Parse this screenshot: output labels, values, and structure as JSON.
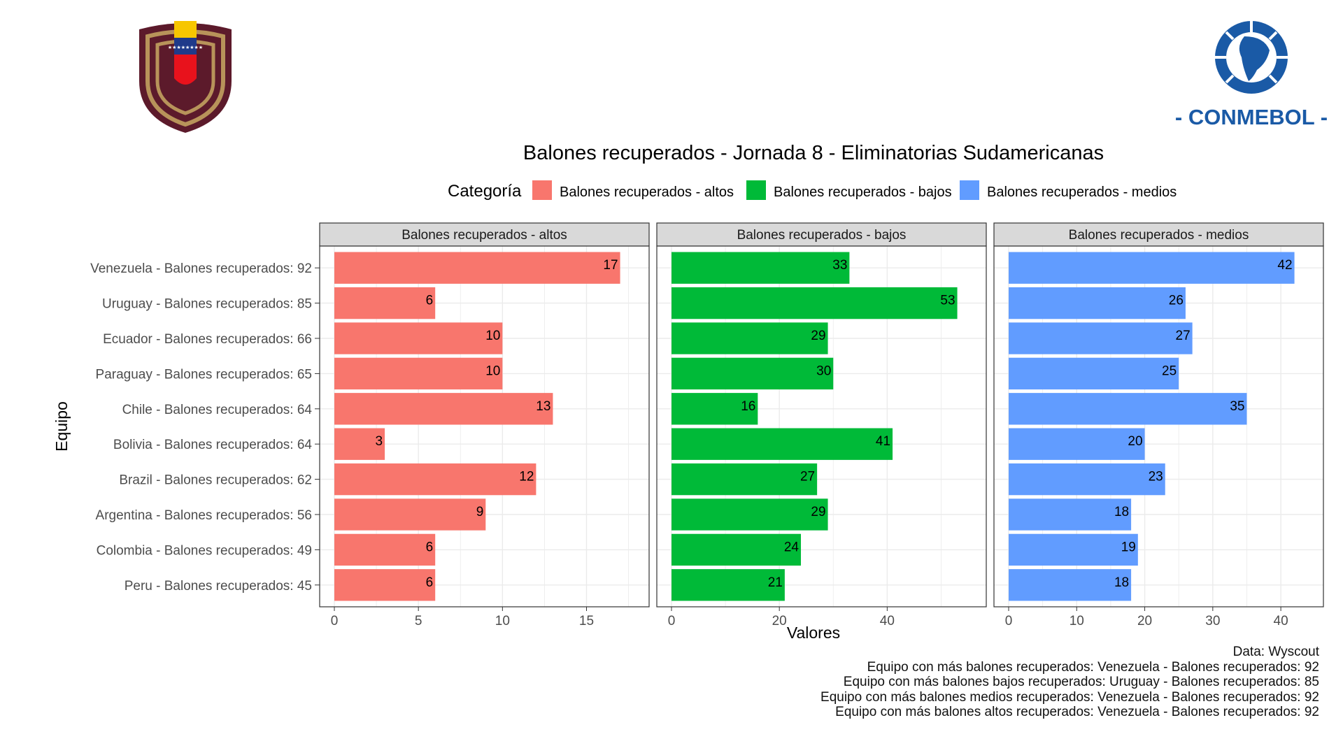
{
  "colors": {
    "altos": "#F8766D",
    "bajos": "#00BA38",
    "medios": "#619CFF",
    "strip_bg": "#D9D9D9",
    "grid": "#EBEBEB",
    "venezuela_burgundy": "#5C1A2B",
    "venezuela_gold": "#B8935A",
    "conmebol_blue": "#1A5AA6"
  },
  "logos": {
    "left": {
      "name": "Venezuela crest",
      "icon": "venezuela-crest-icon"
    },
    "right": {
      "name": "CONMEBOL",
      "wordmark": "- CONMEBOL -",
      "icon": "conmebol-logo-icon"
    }
  },
  "chart_data": {
    "type": "bar",
    "orientation": "horizontal",
    "title": "Balones recuperados - Jornada 8 - Eliminatorias Sudamericanas",
    "legend": {
      "title": "Categoría",
      "placement": "top",
      "entries": [
        "Balones recuperados - altos",
        "Balones recuperados - bajos",
        "Balones recuperados - medios"
      ]
    },
    "xlabel": "Valores",
    "ylabel": "Equipo",
    "categories": [
      "Venezuela - Balones recuperados: 92",
      "Uruguay - Balones recuperados: 85",
      "Ecuador - Balones recuperados: 66",
      "Paraguay - Balones recuperados: 65",
      "Chile - Balones recuperados: 64",
      "Bolivia - Balones recuperados: 64",
      "Brazil - Balones recuperados: 62",
      "Argentina - Balones recuperados: 56",
      "Colombia - Balones recuperados: 49",
      "Peru - Balones recuperados: 45"
    ],
    "series": [
      {
        "name": "Balones recuperados - altos",
        "color_key": "altos",
        "values": [
          17,
          6,
          10,
          10,
          13,
          3,
          12,
          9,
          6,
          6
        ],
        "xlim": [
          0,
          17.85
        ],
        "ticks": [
          0,
          5,
          10,
          15
        ]
      },
      {
        "name": "Balones recuperados - bajos",
        "color_key": "bajos",
        "values": [
          33,
          53,
          29,
          30,
          16,
          41,
          27,
          29,
          24,
          21
        ],
        "xlim": [
          0,
          55.65
        ],
        "ticks": [
          0,
          20,
          40
        ]
      },
      {
        "name": "Balones recuperados - medios",
        "color_key": "medios",
        "values": [
          42,
          26,
          27,
          25,
          35,
          20,
          23,
          18,
          19,
          18
        ],
        "xlim": [
          0,
          44.1
        ],
        "ticks": [
          0,
          10,
          20,
          30,
          40
        ]
      }
    ],
    "grid": true
  },
  "caption": {
    "lines": [
      "Data: Wyscout",
      "Equipo con más balones recuperados: Venezuela - Balones recuperados: 92",
      "Equipo con más balones bajos recuperados: Uruguay - Balones recuperados: 85",
      "Equipo con más balones medios recuperados: Venezuela - Balones recuperados: 92",
      "Equipo con más balones altos recuperados: Venezuela - Balones recuperados: 92"
    ]
  }
}
